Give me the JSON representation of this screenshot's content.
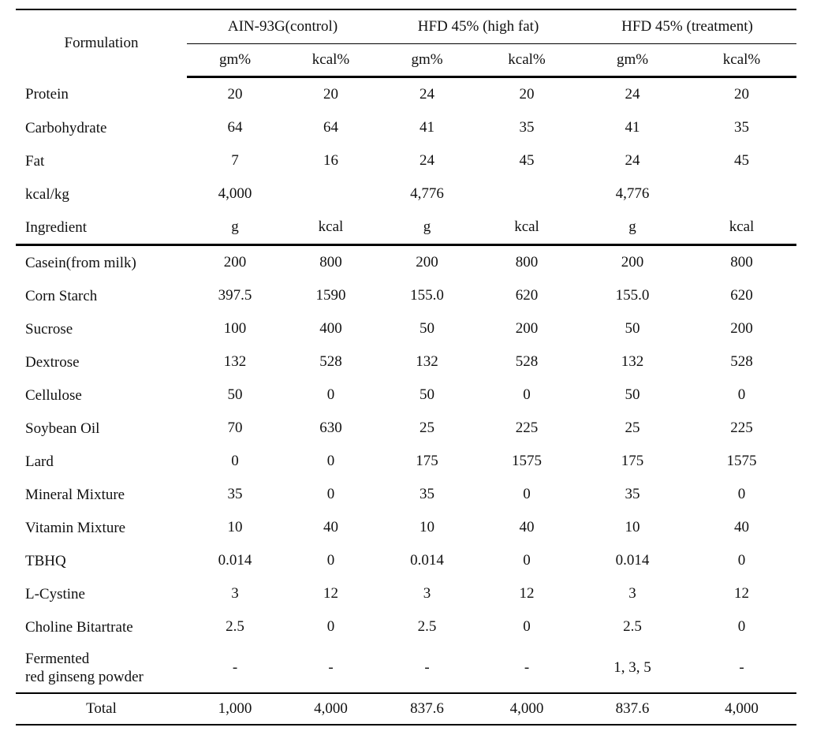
{
  "header": {
    "title": "Formulation",
    "groups": [
      "AIN-93G(control)",
      "HFD 45% (high fat)",
      "HFD 45% (treatment)"
    ],
    "units": [
      "gm%",
      "kcal%",
      "gm%",
      "kcal%",
      "gm%",
      "kcal%"
    ]
  },
  "composition": {
    "rows": [
      {
        "label": "Protein",
        "cells": [
          "20",
          "20",
          "24",
          "20",
          "24",
          "20"
        ]
      },
      {
        "label": "Carbohydrate",
        "cells": [
          "64",
          "64",
          "41",
          "35",
          "41",
          "35"
        ]
      },
      {
        "label": "Fat",
        "cells": [
          "7",
          "16",
          "24",
          "45",
          "24",
          "45"
        ]
      },
      {
        "label": "kcal/kg",
        "cells": [
          "4,000",
          null,
          "4,776",
          null,
          "4,776",
          null
        ]
      }
    ]
  },
  "ingredient_header": {
    "label": "Ingredient",
    "units": [
      "g",
      "kcal",
      "g",
      "kcal",
      "g",
      "kcal"
    ]
  },
  "ingredients": {
    "rows": [
      {
        "label": "Casein(from milk)",
        "cells": [
          "200",
          "800",
          "200",
          "800",
          "200",
          "800"
        ]
      },
      {
        "label": "Corn Starch",
        "cells": [
          "397.5",
          "1590",
          "155.0",
          "620",
          "155.0",
          "620"
        ]
      },
      {
        "label": "Sucrose",
        "cells": [
          "100",
          "400",
          "50",
          "200",
          "50",
          "200"
        ]
      },
      {
        "label": "Dextrose",
        "cells": [
          "132",
          "528",
          "132",
          "528",
          "132",
          "528"
        ]
      },
      {
        "label": "Cellulose",
        "cells": [
          "50",
          "0",
          "50",
          "0",
          "50",
          "0"
        ]
      },
      {
        "label": "Soybean Oil",
        "cells": [
          "70",
          "630",
          "25",
          "225",
          "25",
          "225"
        ]
      },
      {
        "label": "Lard",
        "cells": [
          "0",
          "0",
          "175",
          "1575",
          "175",
          "1575"
        ]
      },
      {
        "label": "Mineral Mixture",
        "cells": [
          "35",
          "0",
          "35",
          "0",
          "35",
          "0"
        ]
      },
      {
        "label": "Vitamin Mixture",
        "cells": [
          "10",
          "40",
          "10",
          "40",
          "10",
          "40"
        ]
      },
      {
        "label": "TBHQ",
        "cells": [
          "0.014",
          "0",
          "0.014",
          "0",
          "0.014",
          "0"
        ]
      },
      {
        "label": "L-Cystine",
        "cells": [
          "3",
          "12",
          "3",
          "12",
          "3",
          "12"
        ]
      },
      {
        "label": "Choline Bitartrate",
        "cells": [
          "2.5",
          "0",
          "2.5",
          "0",
          "2.5",
          "0"
        ]
      },
      {
        "label": "Fermented\nred ginseng powder",
        "cells": [
          "-",
          "-",
          "-",
          "-",
          "1, 3, 5",
          "-"
        ]
      }
    ]
  },
  "total": {
    "label": "Total",
    "cells": [
      "1,000",
      "4,000",
      "837.6",
      "4,000",
      "837.6",
      "4,000"
    ]
  }
}
